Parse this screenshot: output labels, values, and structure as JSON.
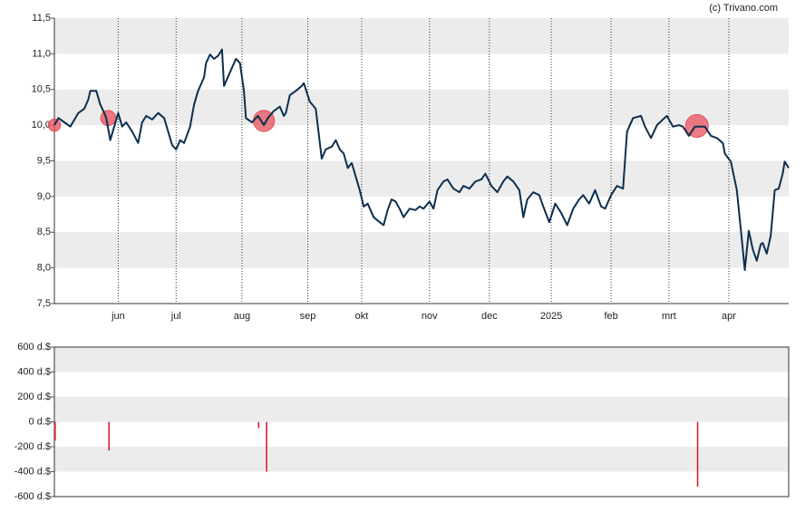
{
  "credit": "(c) Trivano.com",
  "chart_data": [
    {
      "type": "line",
      "color": "#0d2f4f",
      "x": [
        0,
        2,
        5,
        8,
        12,
        15,
        17,
        18,
        21,
        23,
        25,
        26,
        28,
        30,
        32,
        34,
        36,
        39,
        42,
        44,
        46,
        49,
        52,
        55,
        57,
        59,
        61,
        63,
        65,
        68,
        70,
        72,
        75,
        76,
        78,
        80,
        82,
        84,
        85,
        88,
        91,
        93,
        95,
        96,
        99,
        102,
        105,
        107,
        110,
        113,
        115,
        116,
        118,
        121,
        124,
        125,
        128,
        131,
        134,
        136,
        139,
        141,
        143,
        145,
        147,
        149,
        151,
        153,
        155,
        157,
        160,
        163,
        165,
        167,
        169,
        171,
        173,
        175,
        178,
        181,
        183,
        185,
        188,
        190,
        192,
        195,
        197,
        200,
        203,
        205,
        208,
        211,
        214,
        216,
        219,
        222,
        225,
        227,
        230,
        233,
        235,
        237,
        240,
        243,
        245,
        248,
        251,
        254,
        257,
        260,
        263,
        265,
        268,
        271,
        274,
        276,
        279,
        282,
        285,
        287,
        290,
        294,
        296,
        299,
        302,
        305,
        307,
        310,
        313,
        315,
        318,
        321,
        324,
        326,
        329,
        332,
        335,
        336,
        339,
        342,
        345,
        346,
        348,
        350,
        352,
        354,
        355,
        357,
        359,
        361,
        363,
        365,
        366,
        368
      ],
      "values": [
        10.0,
        10.1,
        10.04,
        9.98,
        10.17,
        10.23,
        10.36,
        10.48,
        10.48,
        10.29,
        10.17,
        10.1,
        9.79,
        9.98,
        10.17,
        9.98,
        10.04,
        9.91,
        9.75,
        10.04,
        10.13,
        10.08,
        10.17,
        10.1,
        9.91,
        9.72,
        9.66,
        9.79,
        9.75,
        9.98,
        10.29,
        10.48,
        10.67,
        10.87,
        10.99,
        10.93,
        10.97,
        11.06,
        10.55,
        10.74,
        10.93,
        10.87,
        10.48,
        10.1,
        10.04,
        10.13,
        10.0,
        10.1,
        10.2,
        10.26,
        10.13,
        10.17,
        10.42,
        10.48,
        10.55,
        10.59,
        10.33,
        10.23,
        9.53,
        9.66,
        9.7,
        9.79,
        9.66,
        9.6,
        9.4,
        9.47,
        9.28,
        9.09,
        8.86,
        8.9,
        8.71,
        8.64,
        8.6,
        8.81,
        8.96,
        8.93,
        8.83,
        8.71,
        8.83,
        8.81,
        8.86,
        8.83,
        8.93,
        8.83,
        9.09,
        9.21,
        9.24,
        9.11,
        9.06,
        9.15,
        9.11,
        9.21,
        9.24,
        9.32,
        9.15,
        9.06,
        9.21,
        9.28,
        9.21,
        9.09,
        8.71,
        8.96,
        9.06,
        9.02,
        8.86,
        8.64,
        8.9,
        8.77,
        8.6,
        8.83,
        8.96,
        9.02,
        8.9,
        9.09,
        8.86,
        8.83,
        9.02,
        9.15,
        9.11,
        9.91,
        10.1,
        10.13,
        9.98,
        9.82,
        10.0,
        10.08,
        10.13,
        9.98,
        10.0,
        9.98,
        9.85,
        9.98,
        9.98,
        9.98,
        9.85,
        9.82,
        9.75,
        9.6,
        9.49,
        9.09,
        8.26,
        7.97,
        8.52,
        8.26,
        8.1,
        8.33,
        8.35,
        8.2,
        8.45,
        9.09,
        9.11,
        9.32,
        9.49,
        9.4
      ],
      "markers": {
        "color": "#e8505b",
        "x": [
          0,
          27,
          105,
          322
        ],
        "values": [
          10.0,
          10.1,
          10.06,
          9.99
        ],
        "sizes": [
          150,
          230,
          450,
          520
        ]
      },
      "xlim": [
        0,
        368
      ],
      "xticks": [
        {
          "value": 32,
          "label": "jun"
        },
        {
          "value": 61,
          "label": "jul"
        },
        {
          "value": 94,
          "label": "aug"
        },
        {
          "value": 127,
          "label": "sep"
        },
        {
          "value": 154,
          "label": "okt"
        },
        {
          "value": 188,
          "label": "nov"
        },
        {
          "value": 218,
          "label": "dec"
        },
        {
          "value": 249,
          "label": "2025"
        },
        {
          "value": 279,
          "label": "feb"
        },
        {
          "value": 308,
          "label": "mrt"
        },
        {
          "value": 338,
          "label": "apr"
        }
      ],
      "ylim": [
        7.5,
        11.5
      ],
      "yticks": [
        {
          "value": 7.5,
          "label": "7,5"
        },
        {
          "value": 8.0,
          "label": "8,0"
        },
        {
          "value": 8.5,
          "label": "8,5"
        },
        {
          "value": 9.0,
          "label": "9,0"
        },
        {
          "value": 9.5,
          "label": "9,5"
        },
        {
          "value": 10.0,
          "label": "10,0"
        },
        {
          "value": 10.5,
          "label": "10,5"
        },
        {
          "value": 11.0,
          "label": "11,0"
        },
        {
          "value": 11.5,
          "label": "11,5"
        }
      ]
    },
    {
      "type": "bar",
      "color": "#d62035",
      "x": [
        0,
        27,
        102,
        106,
        322
      ],
      "values": [
        -150,
        -230,
        -50,
        -400,
        -520
      ],
      "xlim": [
        0,
        368
      ],
      "ylim": [
        -600,
        600
      ],
      "yticks": [
        {
          "value": -600,
          "label": "-600 d.$"
        },
        {
          "value": -400,
          "label": "-400 d.$"
        },
        {
          "value": -200,
          "label": "-200 d.$"
        },
        {
          "value": 0,
          "label": "0 d.$"
        },
        {
          "value": 200,
          "label": "200 d.$"
        },
        {
          "value": 400,
          "label": "400 d.$"
        },
        {
          "value": 600,
          "label": "600 d.$"
        }
      ]
    }
  ]
}
